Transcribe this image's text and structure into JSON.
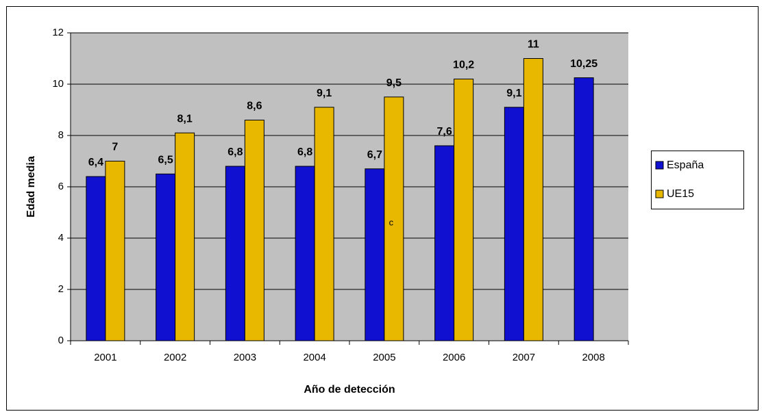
{
  "chart_data": {
    "type": "bar",
    "x_label": "Año de detección",
    "y_label": "Edad media",
    "annotation": "c",
    "categories": [
      "2001",
      "2002",
      "2003",
      "2004",
      "2005",
      "2006",
      "2007",
      "2008"
    ],
    "series": [
      {
        "name": "España",
        "color": "#1010d0",
        "values": [
          6.4,
          6.5,
          6.8,
          6.8,
          6.7,
          7.6,
          9.1,
          10.25
        ],
        "value_labels": [
          "6,4",
          "6,5",
          "6,8",
          "6,8",
          "6,7",
          "7,6",
          "9,1",
          "10,25"
        ]
      },
      {
        "name": "UE15",
        "color": "#e8b800",
        "values": [
          7,
          8.1,
          8.6,
          9.1,
          9.5,
          10.2,
          11,
          null
        ],
        "value_labels": [
          "7",
          "8,1",
          "8,6",
          "9,1",
          "9,5",
          "10,2",
          "11",
          null
        ]
      }
    ],
    "ylim": [
      0,
      12
    ],
    "yticks": [
      0,
      2,
      4,
      6,
      8,
      10,
      12
    ],
    "grid": true,
    "legend_position": "right"
  }
}
